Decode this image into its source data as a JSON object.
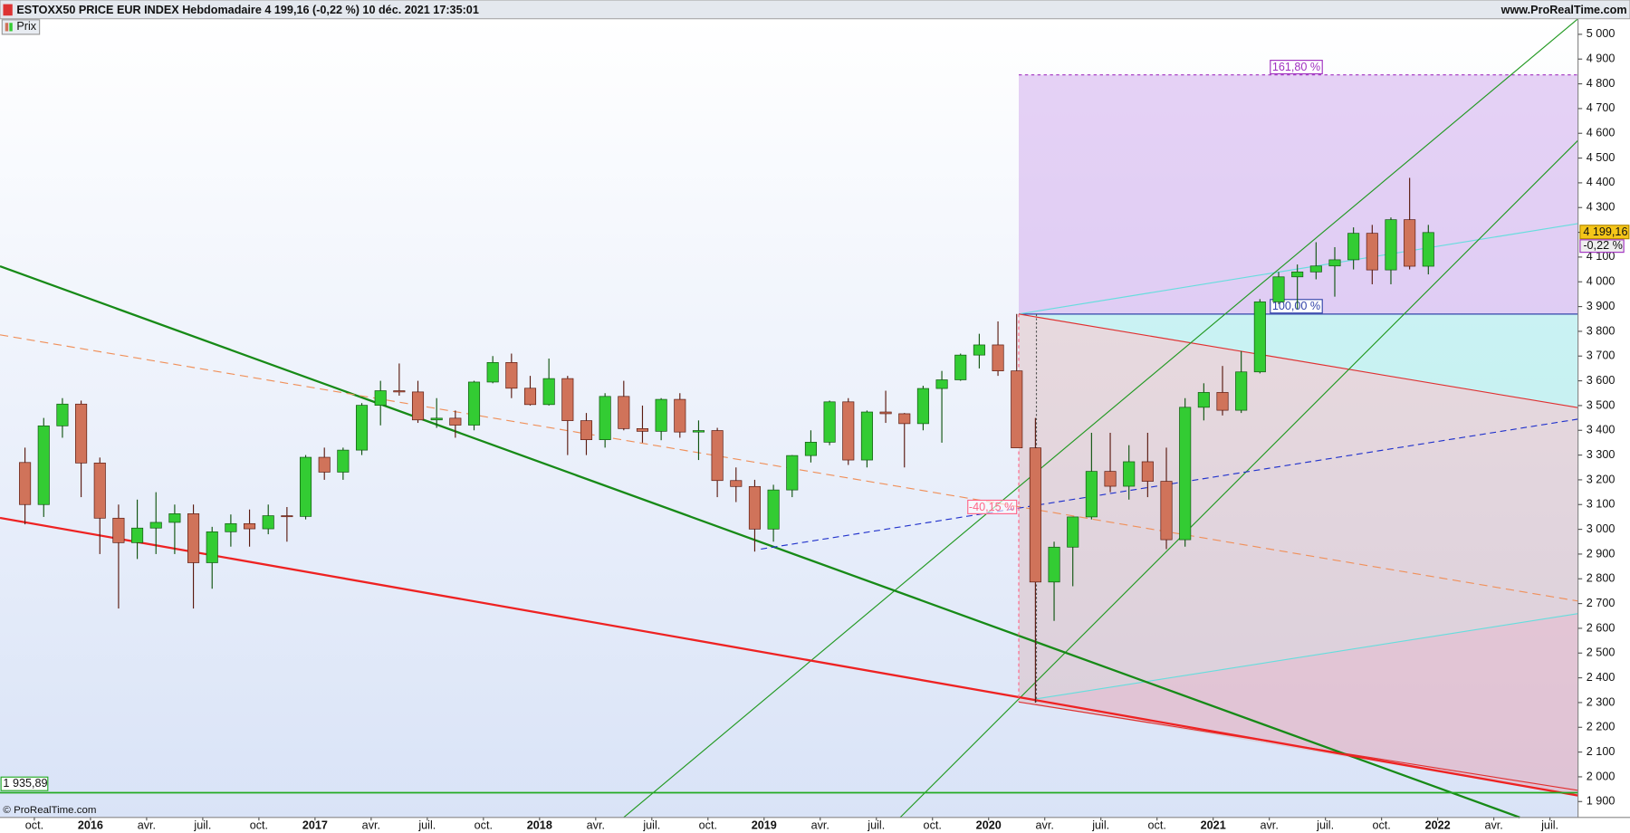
{
  "header": {
    "title": "ESTOXX50 PRICE EUR INDEX Hebdomadaire 4 199,16 (-0,22 %) 10 déc. 2021 17:35:01",
    "site": "www.ProRealTime.com",
    "legend": "Prix",
    "copyright": "© ProRealTime.com"
  },
  "chart_data": {
    "type": "candlestick",
    "color_up": "#33cc33",
    "color_down": "#d0735a",
    "x": [
      "2015-09",
      "2015-10",
      "2015-11",
      "2015-12",
      "2016-01",
      "2016-02",
      "2016-03",
      "2016-04",
      "2016-05",
      "2016-06",
      "2016-07",
      "2016-08",
      "2016-09",
      "2016-10",
      "2016-11",
      "2016-12",
      "2017-01",
      "2017-02",
      "2017-03",
      "2017-04",
      "2017-05",
      "2017-06",
      "2017-07",
      "2017-08",
      "2017-09",
      "2017-10",
      "2017-11",
      "2017-12",
      "2018-01",
      "2018-02",
      "2018-03",
      "2018-04",
      "2018-05",
      "2018-06",
      "2018-07",
      "2018-08",
      "2018-09",
      "2018-10",
      "2018-11",
      "2018-12",
      "2019-01",
      "2019-02",
      "2019-03",
      "2019-04",
      "2019-05",
      "2019-06",
      "2019-07",
      "2019-08",
      "2019-09",
      "2019-10",
      "2019-11",
      "2019-12",
      "2020-01",
      "2020-02",
      "2020-03",
      "2020-04",
      "2020-05",
      "2020-06",
      "2020-07",
      "2020-08",
      "2020-09",
      "2020-10",
      "2020-11",
      "2020-12",
      "2021-01",
      "2021-02",
      "2021-03",
      "2021-04",
      "2021-05",
      "2021-06",
      "2021-07",
      "2021-08",
      "2021-09",
      "2021-10",
      "2021-11",
      "2021-12"
    ],
    "open": [
      3270,
      3100,
      3418,
      3506,
      3268,
      3045,
      2946,
      3005,
      3028,
      3063,
      2865,
      2990,
      3023,
      3002,
      3055,
      3052,
      3291,
      3231,
      3320,
      3501,
      3560,
      3555,
      3442,
      3449,
      3421,
      3595,
      3674,
      3570,
      3504,
      3609,
      3439,
      3362,
      3537,
      3407,
      3396,
      3525,
      3393,
      3399,
      3197,
      3173,
      3001,
      3159,
      3298,
      3352,
      3515,
      3280,
      3474,
      3467,
      3427,
      3569,
      3604,
      3704,
      3745,
      3640,
      3329,
      2787,
      2928,
      3050,
      3234,
      3174,
      3273,
      3194,
      2958,
      3493,
      3553,
      3481,
      3636,
      3919,
      4020,
      4040,
      4064,
      4089,
      4196,
      4048,
      4251,
      4063
    ],
    "high": [
      3330,
      3450,
      3530,
      3520,
      3290,
      3100,
      3120,
      3150,
      3100,
      3100,
      3010,
      3060,
      3080,
      3100,
      3090,
      3300,
      3330,
      3330,
      3510,
      3600,
      3670,
      3600,
      3530,
      3480,
      3600,
      3700,
      3710,
      3620,
      3690,
      3620,
      3470,
      3550,
      3600,
      3500,
      3530,
      3550,
      3440,
      3410,
      3250,
      3200,
      3180,
      3300,
      3400,
      3520,
      3530,
      3480,
      3560,
      3470,
      3580,
      3640,
      3710,
      3790,
      3840,
      3870,
      3450,
      2950,
      3050,
      3390,
      3390,
      3340,
      3390,
      3330,
      3530,
      3590,
      3660,
      3720,
      3930,
      4040,
      4070,
      4160,
      4140,
      4220,
      4230,
      4260,
      4420,
      4230
    ],
    "low": [
      3020,
      3050,
      3370,
      3130,
      2900,
      2680,
      2880,
      2900,
      2900,
      2680,
      2760,
      2930,
      2930,
      2980,
      2950,
      3040,
      3200,
      3200,
      3300,
      3420,
      3540,
      3430,
      3410,
      3370,
      3400,
      3590,
      3530,
      3500,
      3500,
      3300,
      3300,
      3330,
      3400,
      3350,
      3360,
      3370,
      3280,
      3130,
      3110,
      2910,
      2950,
      3130,
      3270,
      3340,
      3260,
      3250,
      3430,
      3250,
      3400,
      3350,
      3600,
      3650,
      3620,
      3330,
      2300,
      2630,
      2770,
      3040,
      3150,
      3120,
      3130,
      2920,
      2930,
      3440,
      3460,
      3470,
      3630,
      3910,
      3890,
      4010,
      3940,
      4050,
      3990,
      3990,
      4050,
      4030
    ],
    "close": [
      3100,
      3418,
      3506,
      3268,
      3045,
      2946,
      3005,
      3028,
      3063,
      2865,
      2990,
      3023,
      3002,
      3055,
      3052,
      3291,
      3231,
      3320,
      3501,
      3560,
      3555,
      3442,
      3449,
      3421,
      3595,
      3674,
      3570,
      3504,
      3609,
      3439,
      3362,
      3537,
      3407,
      3396,
      3525,
      3393,
      3399,
      3197,
      3173,
      3001,
      3159,
      3298,
      3352,
      3515,
      3280,
      3474,
      3467,
      3427,
      3569,
      3604,
      3704,
      3745,
      3640,
      3329,
      2787,
      2928,
      3050,
      3234,
      3174,
      3273,
      3194,
      2958,
      3493,
      3553,
      3481,
      3636,
      3919,
      4020,
      4040,
      4064,
      4089,
      4196,
      4048,
      4251,
      4063,
      4199.16
    ],
    "xlim": [
      2015.597,
      2022.625
    ],
    "xticks": [
      {
        "value": 2015.75,
        "label": "oct."
      },
      2016,
      {
        "value": 2016.25,
        "label": "avr."
      },
      {
        "value": 2016.5,
        "label": "juil."
      },
      {
        "value": 2016.75,
        "label": "oct."
      },
      2017,
      {
        "value": 2017.25,
        "label": "avr."
      },
      {
        "value": 2017.5,
        "label": "juil."
      },
      {
        "value": 2017.75,
        "label": "oct."
      },
      2018,
      {
        "value": 2018.25,
        "label": "avr."
      },
      {
        "value": 2018.5,
        "label": "juil."
      },
      {
        "value": 2018.75,
        "label": "oct."
      },
      2019,
      {
        "value": 2019.25,
        "label": "avr."
      },
      {
        "value": 2019.5,
        "label": "juil."
      },
      {
        "value": 2019.75,
        "label": "oct."
      },
      2020,
      {
        "value": 2020.25,
        "label": "avr."
      },
      {
        "value": 2020.5,
        "label": "juil."
      },
      {
        "value": 2020.75,
        "label": "oct."
      },
      2021,
      {
        "value": 2021.25,
        "label": "avr."
      },
      {
        "value": 2021.5,
        "label": "juil."
      },
      {
        "value": 2021.75,
        "label": "oct."
      },
      2022,
      {
        "value": 2022.25,
        "label": "avr."
      },
      {
        "value": 2022.5,
        "label": "juil."
      }
    ],
    "ylim": [
      1836,
      5063
    ],
    "yticks": [
      {
        "value": 1900,
        "label": "1 900"
      },
      {
        "value": 2000,
        "label": "2 000"
      },
      {
        "value": 2100,
        "label": "2 100"
      },
      {
        "value": 2200,
        "label": "2 200"
      },
      {
        "value": 2300,
        "label": "2 300"
      },
      {
        "value": 2400,
        "label": "2 400"
      },
      {
        "value": 2500,
        "label": "2 500"
      },
      {
        "value": 2600,
        "label": "2 600"
      },
      {
        "value": 2700,
        "label": "2 700"
      },
      {
        "value": 2800,
        "label": "2 800"
      },
      {
        "value": 2900,
        "label": "2 900"
      },
      {
        "value": 3000,
        "label": "3 000"
      },
      {
        "value": 3100,
        "label": "3 100"
      },
      {
        "value": 3200,
        "label": "3 200"
      },
      {
        "value": 3300,
        "label": "3 300"
      },
      {
        "value": 3400,
        "label": "3 400"
      },
      {
        "value": 3500,
        "label": "3 500"
      },
      {
        "value": 3600,
        "label": "3 600"
      },
      {
        "value": 3700,
        "label": "3 700"
      },
      {
        "value": 3800,
        "label": "3 800"
      },
      {
        "value": 3900,
        "label": "3 900"
      },
      {
        "value": 4000,
        "label": "4 000"
      },
      {
        "value": 4100,
        "label": "4 100"
      },
      {
        "value": 4200,
        "label": "4 200"
      },
      {
        "value": 4300,
        "label": "4 300"
      },
      {
        "value": 4400,
        "label": "4 400"
      },
      {
        "value": 4500,
        "label": "4 500"
      },
      {
        "value": 4600,
        "label": "4 600"
      },
      {
        "value": 4700,
        "label": "4 700"
      },
      {
        "value": 4800,
        "label": "4 800"
      },
      {
        "value": 4900,
        "label": "4 900"
      },
      {
        "value": 5000,
        "label": "5 000"
      }
    ],
    "hline": {
      "value": 1935.89,
      "label": "1 935,89",
      "color": "#22aa22"
    },
    "last": {
      "value": 4199.16,
      "label": "4 199,16",
      "change": "-0,22 %"
    },
    "annotations": [
      "161,80 %",
      "100,00 %",
      "-40,15 %"
    ]
  }
}
